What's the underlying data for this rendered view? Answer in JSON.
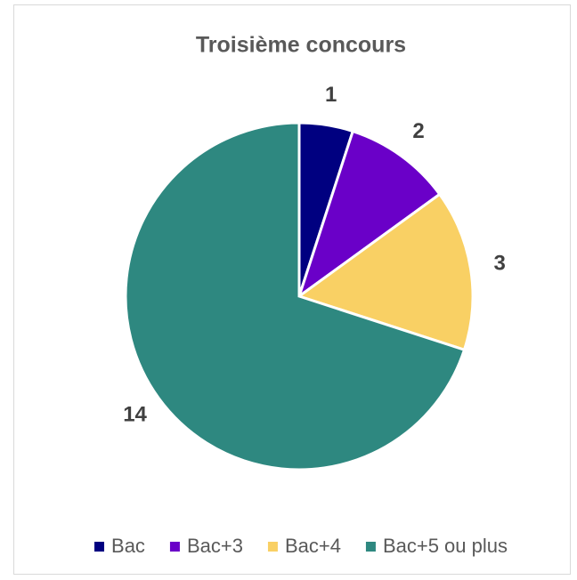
{
  "chart_data": {
    "type": "pie",
    "title": "Troisième concours",
    "categories": [
      "Bac",
      "Bac+3",
      "Bac+4",
      "Bac+5 ou plus"
    ],
    "values": [
      1,
      2,
      3,
      14
    ],
    "colors": [
      "#000080",
      "#6a00c8",
      "#f9d064",
      "#2e8880"
    ],
    "legend": "bottom"
  }
}
